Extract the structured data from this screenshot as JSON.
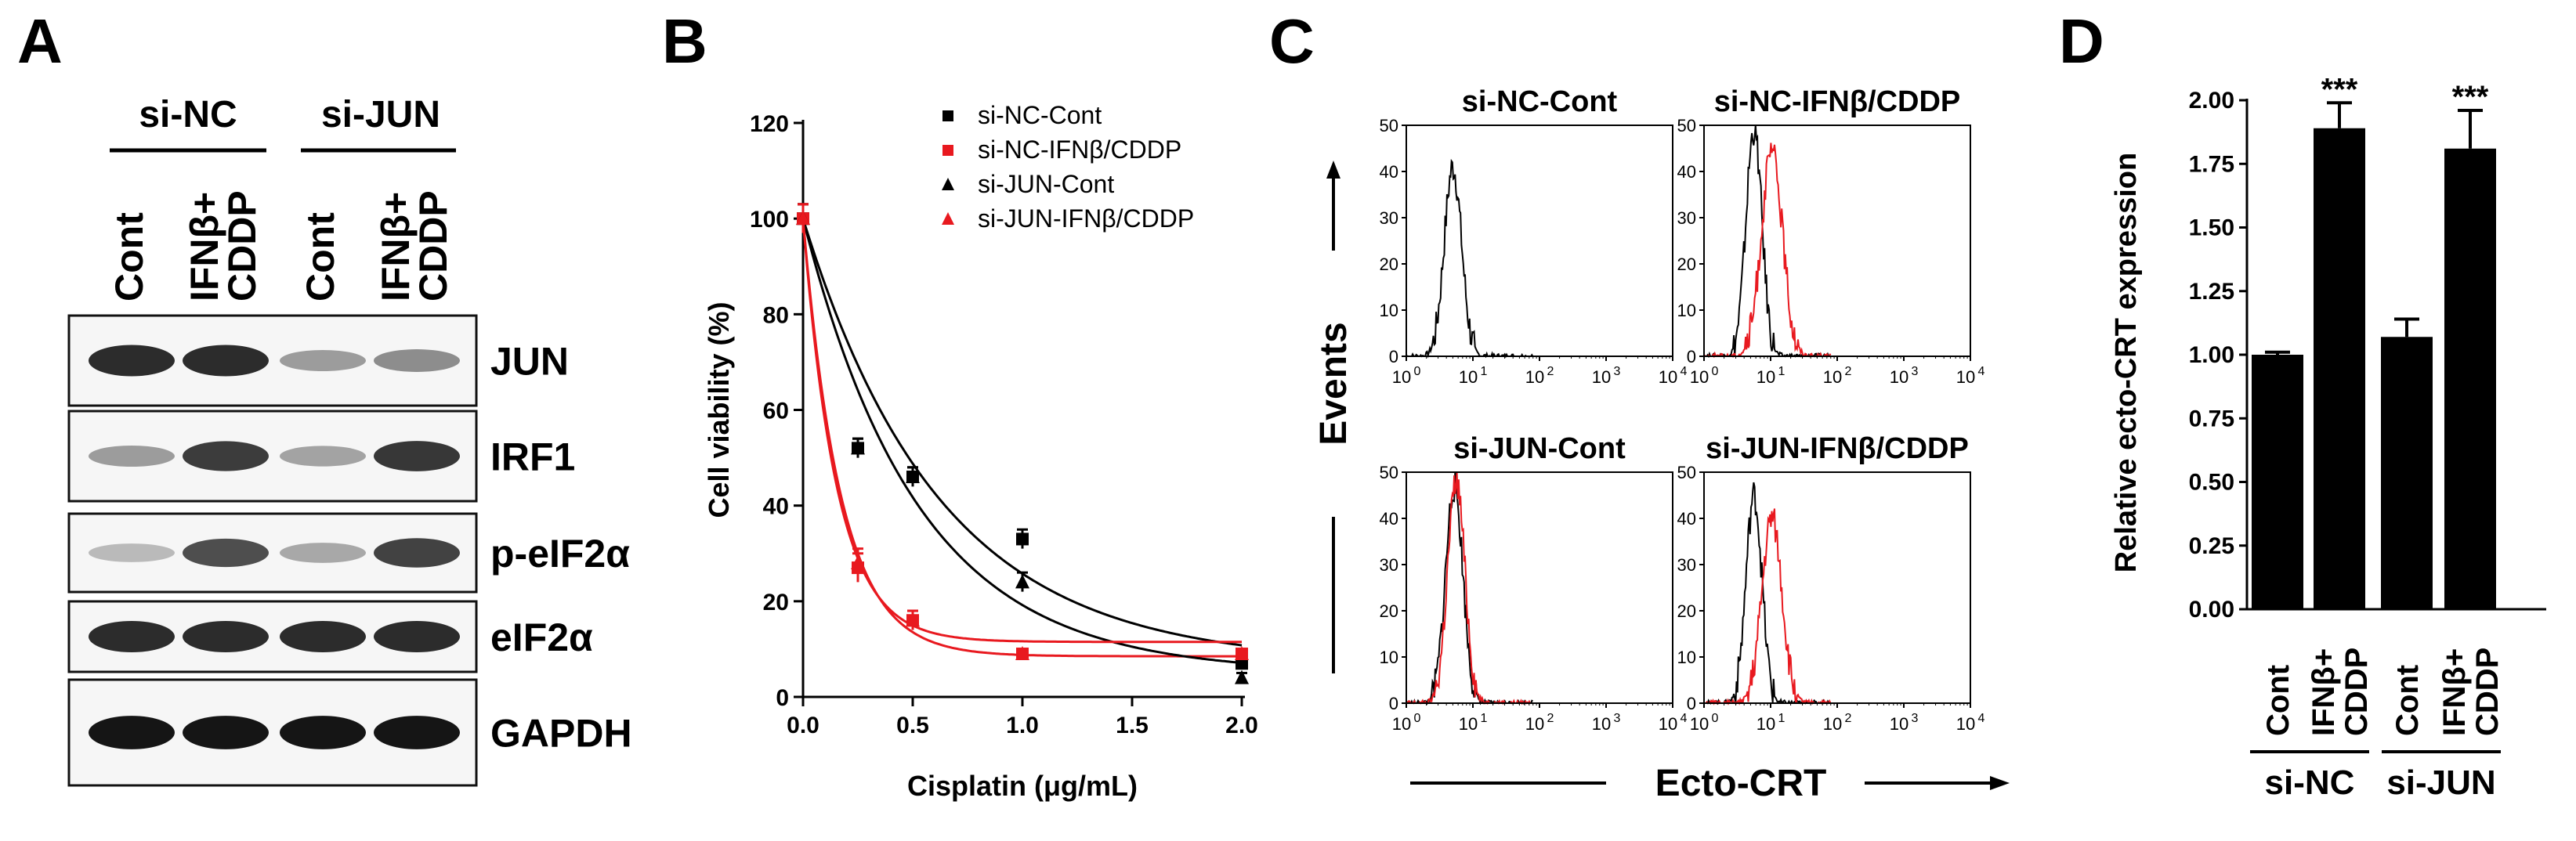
{
  "panel_letters": {
    "a": "A",
    "b": "B",
    "c": "C",
    "d": "D"
  },
  "blot": {
    "groups": [
      "si-NC",
      "si-JUN"
    ],
    "lanes": [
      {
        "lines": [
          "Cont"
        ]
      },
      {
        "lines": [
          "IFNβ+",
          "CDDP"
        ]
      },
      {
        "lines": [
          "Cont"
        ]
      },
      {
        "lines": [
          "IFNβ+",
          "CDDP"
        ]
      }
    ],
    "rows": [
      {
        "label": "JUN",
        "intensities": [
          0.85,
          0.85,
          0.35,
          0.42
        ]
      },
      {
        "label": "IRF1",
        "intensities": [
          0.35,
          0.78,
          0.32,
          0.8
        ]
      },
      {
        "label": "p-eIF2α",
        "intensities": [
          0.22,
          0.7,
          0.3,
          0.75
        ]
      },
      {
        "label": "eIF2α",
        "intensities": [
          0.85,
          0.85,
          0.85,
          0.85
        ]
      },
      {
        "label": "GAPDH",
        "intensities": [
          0.95,
          0.95,
          0.95,
          0.95
        ]
      }
    ]
  },
  "chart_data": [
    {
      "type": "scatter",
      "panel": "B",
      "xlabel": "Cisplatin (μg/mL)",
      "ylabel": "Cell viability (%)",
      "xlim": [
        0,
        2.0
      ],
      "ylim": [
        0,
        120
      ],
      "xticks": [
        "0.0",
        "0.5",
        "1.0",
        "1.5",
        "2.0"
      ],
      "yticks": [
        "0",
        "20",
        "40",
        "60",
        "80",
        "100",
        "120"
      ],
      "series": [
        {
          "name": "si-NC-Cont",
          "color": "#000000",
          "marker": "square",
          "x": [
            0,
            0.25,
            0.5,
            1.0,
            2.0
          ],
          "y": [
            100,
            52,
            46,
            33,
            7
          ],
          "err": [
            3,
            2,
            2,
            2,
            1
          ],
          "fit": {
            "plateau": 7,
            "k": 1.6
          }
        },
        {
          "name": "si-NC-IFNβ/CDDP",
          "color": "#e8191f",
          "marker": "square",
          "x": [
            0,
            0.25,
            0.5,
            1.0,
            2.0
          ],
          "y": [
            100,
            27,
            16,
            9,
            9
          ],
          "err": [
            3,
            3,
            2,
            1,
            1
          ],
          "fit": {
            "plateau": 8.5,
            "k": 5.8
          }
        },
        {
          "name": "si-JUN-Cont",
          "color": "#000000",
          "marker": "triangle",
          "x": [
            0,
            0.25,
            0.5,
            1.0,
            2.0
          ],
          "y": [
            100,
            52,
            46,
            24,
            4
          ],
          "err": [
            3,
            2,
            2,
            2,
            1
          ],
          "fit": {
            "plateau": 5,
            "k": 1.9
          }
        },
        {
          "name": "si-JUN-IFNβ/CDDP",
          "color": "#e8191f",
          "marker": "triangle",
          "x": [
            0,
            0.25,
            0.5,
            1.0,
            2.0
          ],
          "y": [
            100,
            28,
            16,
            9,
            9
          ],
          "err": [
            3,
            3,
            2,
            1,
            1
          ],
          "fit": {
            "plateau": 11.5,
            "k": 6.5
          }
        }
      ]
    },
    {
      "type": "histogram",
      "panel": "C",
      "xlabel": "Ecto-CRT",
      "ylabel": "Events",
      "yticks": [
        "0",
        "10",
        "20",
        "30",
        "40",
        "50"
      ],
      "xtick_base": "10",
      "xtick_exponents": [
        "0",
        "1",
        "2",
        "3",
        "4"
      ],
      "plots": [
        {
          "title": "si-NC-Cont",
          "curves": [
            {
              "color": "#000000",
              "mode_log": 0.7,
              "peak": 41,
              "width": 0.13
            }
          ]
        },
        {
          "title": "si-NC-IFNβ/CDDP",
          "curves": [
            {
              "color": "#000000",
              "mode_log": 0.75,
              "peak": 49,
              "width": 0.12
            },
            {
              "color": "#e8191f",
              "mode_log": 1.02,
              "peak": 44,
              "width": 0.16
            }
          ]
        },
        {
          "title": "si-JUN-Cont",
          "curves": [
            {
              "color": "#000000",
              "mode_log": 0.72,
              "peak": 47,
              "width": 0.13
            },
            {
              "color": "#e8191f",
              "mode_log": 0.75,
              "peak": 48,
              "width": 0.13
            }
          ]
        },
        {
          "title": "si-JUN-IFNβ/CDDP",
          "curves": [
            {
              "color": "#000000",
              "mode_log": 0.75,
              "peak": 45,
              "width": 0.12
            },
            {
              "color": "#e8191f",
              "mode_log": 1.02,
              "peak": 40,
              "width": 0.15
            }
          ]
        }
      ]
    },
    {
      "type": "bar",
      "panel": "D",
      "ylabel": "Relative ecto-CRT expression",
      "ylim": [
        0,
        2.0
      ],
      "yticks": [
        "0.00",
        "0.25",
        "0.50",
        "0.75",
        "1.00",
        "1.25",
        "1.50",
        "1.75",
        "2.00"
      ],
      "categories": [
        {
          "lines": [
            "Cont"
          ]
        },
        {
          "lines": [
            "IFNβ+",
            "CDDP"
          ]
        },
        {
          "lines": [
            "Cont"
          ]
        },
        {
          "lines": [
            "IFNβ+",
            "CDDP"
          ]
        }
      ],
      "groups": [
        "si-NC",
        "si-JUN"
      ],
      "values": [
        1.0,
        1.89,
        1.07,
        1.81
      ],
      "errors": [
        0.01,
        0.1,
        0.07,
        0.15
      ],
      "significance": [
        "",
        "***",
        "",
        "***"
      ]
    }
  ]
}
